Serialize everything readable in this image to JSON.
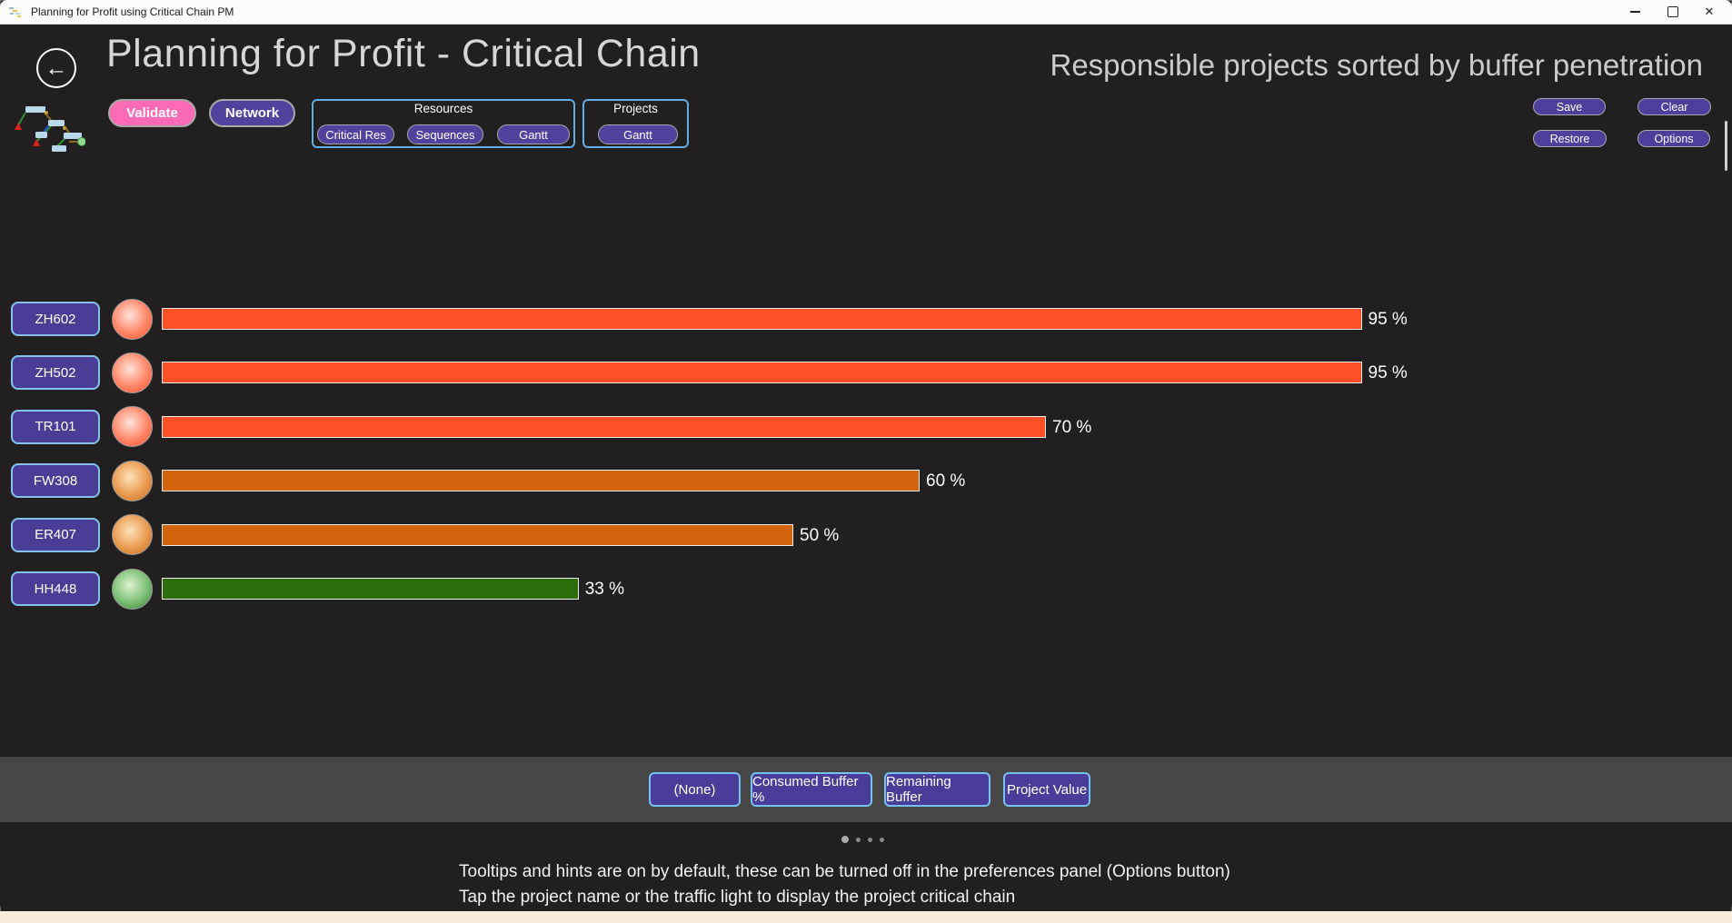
{
  "window": {
    "title": "Planning for Profit using Critical Chain PM",
    "close_glyph": "✕"
  },
  "header": {
    "back_glyph": "←",
    "page_title": "Planning for Profit - Critical Chain",
    "right_title": "Responsible projects sorted by buffer penetration",
    "validate_label": "Validate",
    "network_label": "Network",
    "save_label": "Save",
    "clear_label": "Clear",
    "restore_label": "Restore",
    "options_label": "Options",
    "resources_group": {
      "label": "Resources",
      "buttons": [
        "Critical Res",
        "Sequences",
        "Gantt"
      ]
    },
    "projects_group": {
      "label": "Projects",
      "buttons": [
        "Gantt"
      ]
    }
  },
  "chart_data": {
    "type": "bar",
    "orientation": "horizontal",
    "title": "Responsible projects sorted by buffer penetration",
    "unit": "%",
    "xlim": [
      0,
      100
    ],
    "rows": [
      {
        "project": "ZH602",
        "value": 95,
        "label": "95 %",
        "status": "red"
      },
      {
        "project": "ZH502",
        "value": 95,
        "label": "95 %",
        "status": "red"
      },
      {
        "project": "TR101",
        "value": 70,
        "label": "70 %",
        "status": "red"
      },
      {
        "project": "FW308",
        "value": 60,
        "label": "60 %",
        "status": "orange"
      },
      {
        "project": "ER407",
        "value": 50,
        "label": "50 %",
        "status": "orange"
      },
      {
        "project": "HH448",
        "value": 33,
        "label": "33 %",
        "status": "green"
      }
    ]
  },
  "status_colors": {
    "red": {
      "bar": "#FF5128",
      "light_center": "#FFE3DA",
      "light_mid": "#FF8668",
      "light_edge": "#FC4F2E"
    },
    "orange": {
      "bar": "#D2640E",
      "light_center": "#FFE2B8",
      "light_mid": "#E89A50",
      "light_edge": "#C76D16"
    },
    "green": {
      "bar": "#2C6D0C",
      "light_center": "#DDF4CE",
      "light_mid": "#7CBE74",
      "light_edge": "#2F8032"
    }
  },
  "bottom_toolbar": {
    "buttons": [
      {
        "label": "(None)"
      },
      {
        "label": "Consumed Buffer %"
      },
      {
        "label": "Remaining Buffer"
      },
      {
        "label": "Project Value"
      }
    ]
  },
  "pagination": {
    "dots": 4,
    "active_index": 0
  },
  "hints": {
    "line1": "Tooltips and hints are on by default, these can be turned off in the preferences panel (Options button)",
    "line2": "Tap the project name or the traffic light to display the project critical chain"
  },
  "accent_colors": {
    "pink": "#fb6bb3",
    "purple": "#52429e",
    "group_border": "#62aee3",
    "strip_bg": "#464646",
    "app_bg": "#211f1f"
  }
}
